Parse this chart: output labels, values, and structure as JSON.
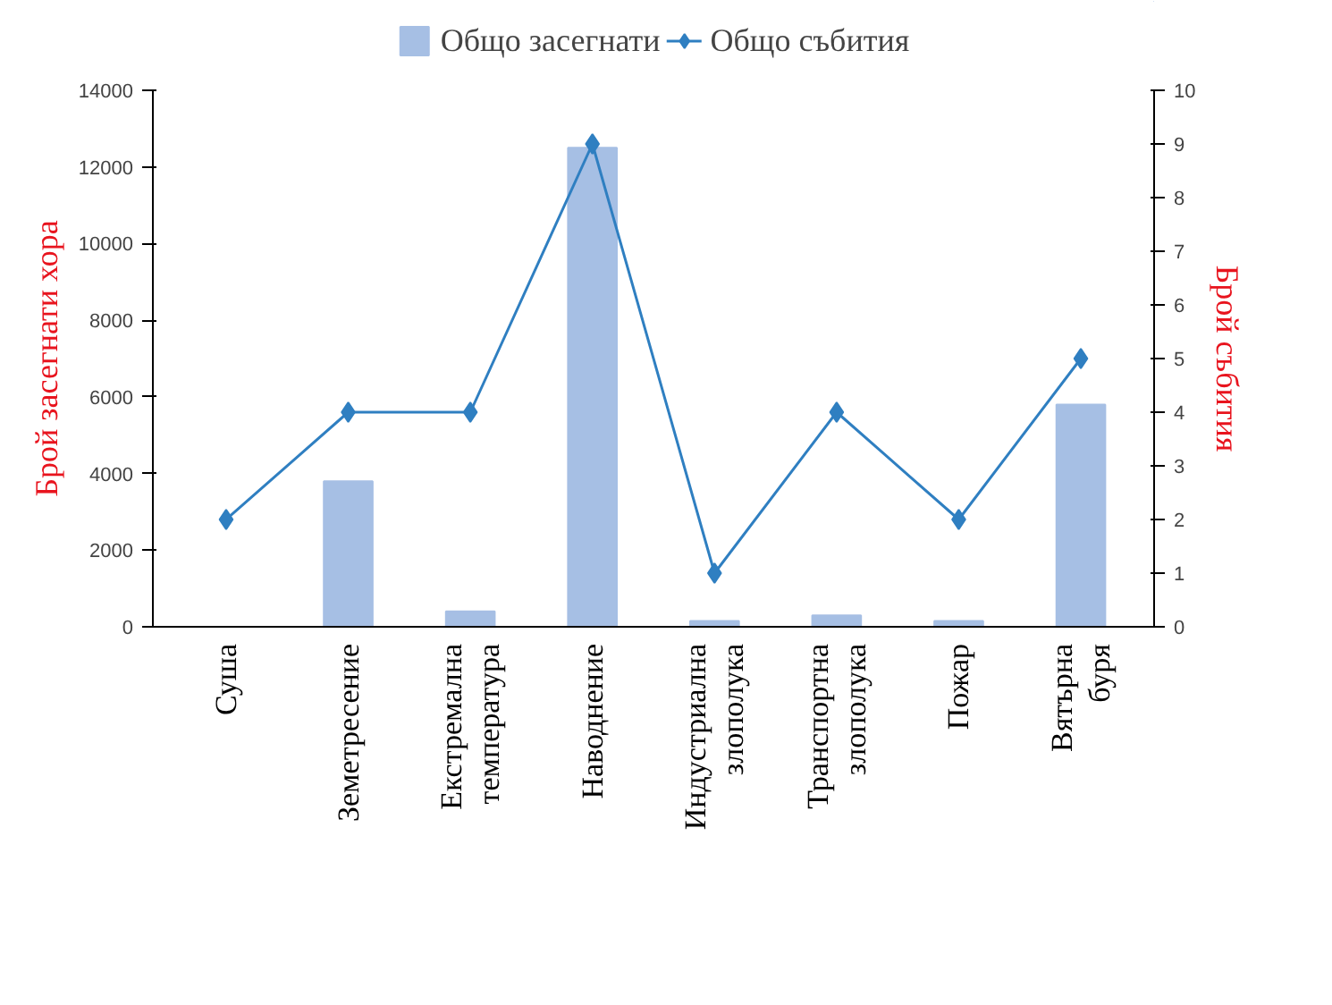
{
  "chart_data": {
    "type": "bar",
    "categories": [
      "Суша",
      "Земетресение",
      "Екстремална\nтемпература",
      "Наводнение",
      "Индустриална\nзлополука",
      "Транспортна\nзлополука",
      "Пожар",
      "Вятърна\nбуря"
    ],
    "series": [
      {
        "name": "Общо засегнати",
        "color": "#a6bfe4",
        "values": [
          0,
          3800,
          400,
          12500,
          150,
          300,
          150,
          5800
        ]
      },
      {
        "name": "Общо събития",
        "type": "line",
        "axis": "y2",
        "color": "#2f7fc1",
        "marker": "diamond",
        "values": [
          2,
          4,
          4,
          9,
          1,
          4,
          2,
          5
        ]
      }
    ],
    "ylabel": "Брой засегнати хора",
    "y2label": "Брой събития",
    "ylim": [
      0,
      14000
    ],
    "yticks": [
      0,
      2000,
      4000,
      6000,
      8000,
      10000,
      12000,
      14000
    ],
    "y2lim": [
      0,
      10
    ],
    "y2ticks": [
      0,
      1,
      2,
      3,
      4,
      5,
      6,
      7,
      8,
      9,
      10
    ],
    "legend": "top",
    "grid": false
  }
}
